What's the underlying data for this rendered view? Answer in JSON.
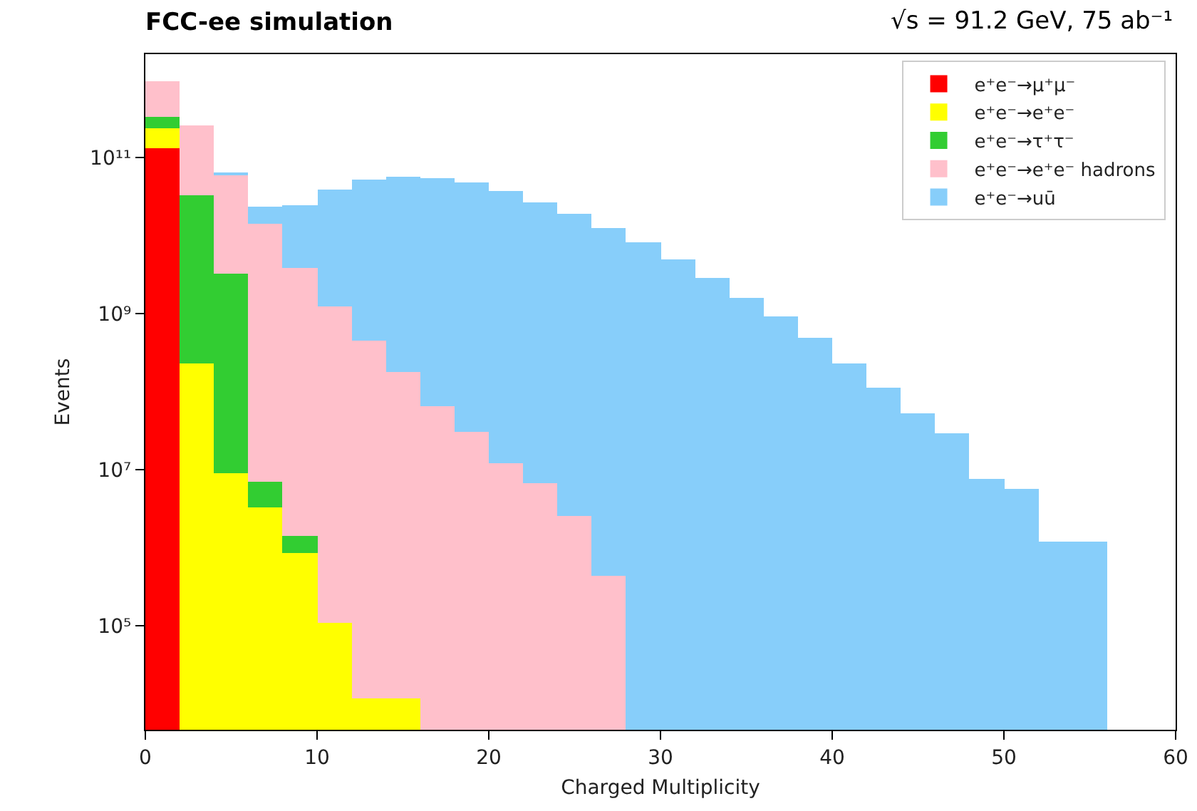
{
  "chart_data": {
    "type": "bar",
    "title": "FCC-ee simulation",
    "subtitle": "√s = 91.2 GeV, 75 ab⁻¹",
    "xlabel": "Charged Multiplicity",
    "ylabel": "Events",
    "x": [
      1,
      3,
      5,
      7,
      9,
      11,
      13,
      15,
      17,
      19,
      21,
      23,
      25,
      27,
      29,
      31,
      33,
      35,
      37,
      39,
      41,
      43,
      45,
      47,
      49,
      51,
      53,
      55
    ],
    "stacked": true,
    "series": [
      {
        "name": "e⁺e⁻→μ⁺μ⁻",
        "color": "#ff0000",
        "values": [
          130000000000.0,
          null,
          null,
          null,
          null,
          null,
          null,
          null,
          null,
          null,
          null,
          null,
          null,
          null,
          null,
          null,
          null,
          null,
          null,
          null,
          null,
          null,
          null,
          null,
          null,
          null,
          null,
          null
        ]
      },
      {
        "name": "e⁺e⁻→e⁺e⁻",
        "color": "#ffff00",
        "values": [
          110000000000.0,
          230000000.0,
          9200000.0,
          3300000.0,
          850000.0,
          110000.0,
          12000.0,
          12000.0,
          null,
          null,
          null,
          null,
          null,
          null,
          null,
          null,
          null,
          null,
          null,
          null,
          null,
          null,
          null,
          null,
          null,
          null,
          null,
          null
        ]
      },
      {
        "name": "e⁺e⁻→τ⁺τ⁻",
        "color": "#32cd32",
        "values": [
          90000000000.0,
          32000000000.0,
          3300000000.0,
          3700000.0,
          550000.0,
          null,
          null,
          null,
          null,
          null,
          null,
          null,
          null,
          null,
          null,
          null,
          null,
          null,
          null,
          null,
          null,
          null,
          null,
          null,
          null,
          null,
          null,
          null
        ]
      },
      {
        "name": "e⁺e⁻→e⁺e⁻ hadrons",
        "color": "#ffc0cb",
        "values": [
          600000000000.0,
          220000000000.0,
          56000000000.0,
          14000000000.0,
          3800000000.0,
          1240000000.0,
          450000000.0,
          180000000.0,
          65000000.0,
          31000000.0,
          12000000.0,
          6800000.0,
          2600000.0,
          440000.0,
          null,
          null,
          null,
          null,
          null,
          null,
          null,
          null,
          null,
          null,
          null,
          null,
          null,
          null
        ]
      },
      {
        "name": "e⁺e⁻→uū",
        "color": "#87cefa",
        "values": [
          null,
          null,
          4000000000.0,
          9000000000.0,
          21000000000.0,
          38000000000.0,
          51000000000.0,
          57000000000.0,
          55000000000.0,
          47000000000.0,
          37000000000.0,
          27000000000.0,
          19000000000.0,
          12600000000.0,
          8100000000.0,
          4900000000.0,
          2900000000.0,
          1600000000.0,
          910000000.0,
          500000000.0,
          230000000.0,
          114000000.0,
          53000000.0,
          30000000.0,
          7600000.0,
          5800000.0,
          1200000.0,
          1200000.0
        ]
      }
    ],
    "xlim": [
      0,
      60
    ],
    "xticks": [
      0,
      10,
      20,
      30,
      40,
      50,
      60
    ],
    "ylim": [
      4700,
      2100000000000.0
    ],
    "yticks": [
      {
        "value": 100000,
        "label": "10⁵"
      },
      {
        "value": 10000000,
        "label": "10⁷"
      },
      {
        "value": 1000000000,
        "label": "10⁹"
      },
      {
        "value": 100000000000,
        "label": "10¹¹"
      }
    ],
    "log": true,
    "legend": "top right"
  }
}
